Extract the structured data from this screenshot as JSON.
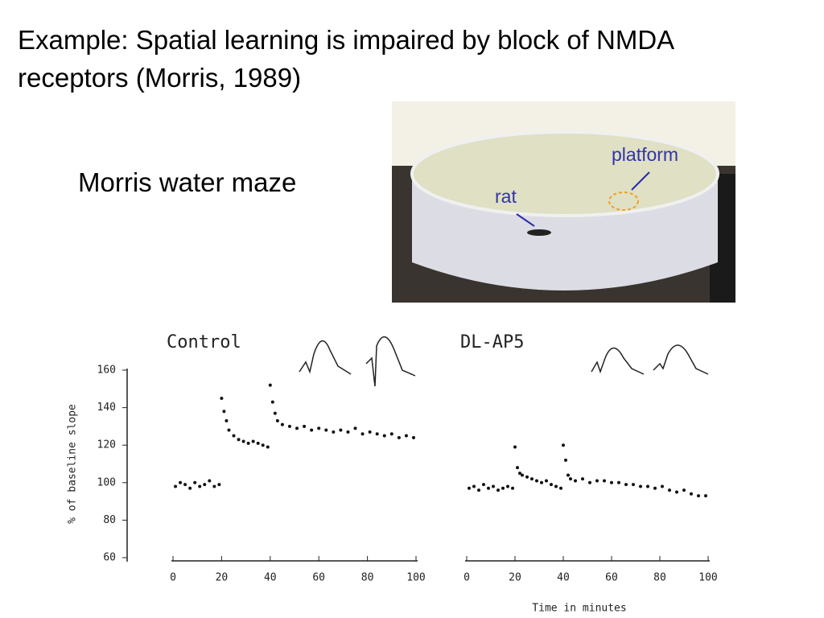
{
  "title": "Example: Spatial learning is impaired by block of NMDA receptors (Morris, 1989)",
  "label": "Morris water maze",
  "photo": {
    "platform": "platform",
    "rat": "rat"
  },
  "chart_data": [
    {
      "type": "scatter",
      "title": "Control",
      "y_label": "% of baseline slope",
      "color": "#111111",
      "x": [
        1,
        3,
        5,
        7,
        9,
        11,
        13,
        15,
        17,
        19,
        20,
        21,
        22,
        23,
        25,
        27,
        29,
        31,
        33,
        35,
        37,
        39,
        40,
        41,
        42,
        43,
        45,
        48,
        51,
        54,
        57,
        60,
        63,
        66,
        69,
        72,
        75,
        78,
        81,
        84,
        87,
        90,
        93,
        96,
        99
      ],
      "values": [
        98,
        100,
        99,
        97,
        100,
        98,
        99,
        101,
        98,
        99,
        145,
        138,
        133,
        128,
        125,
        123,
        122,
        121,
        122,
        121,
        120,
        119,
        152,
        143,
        137,
        133,
        131,
        130,
        129,
        130,
        128,
        129,
        128,
        127,
        128,
        127,
        129,
        126,
        127,
        126,
        125,
        126,
        124,
        125,
        124
      ],
      "xlim": [
        0,
        100
      ],
      "xticks": [
        0,
        20,
        40,
        60,
        80,
        100
      ],
      "ylim": [
        60,
        160
      ],
      "yticks": [
        60,
        80,
        100,
        120,
        140,
        160
      ]
    },
    {
      "type": "scatter",
      "title": "DL-AP5",
      "x_label": "Time in minutes",
      "color": "#111111",
      "x": [
        1,
        3,
        5,
        7,
        9,
        11,
        13,
        15,
        17,
        19,
        20,
        21,
        22,
        23,
        25,
        27,
        29,
        31,
        33,
        35,
        37,
        39,
        40,
        41,
        42,
        43,
        45,
        48,
        51,
        54,
        57,
        60,
        63,
        66,
        69,
        72,
        75,
        78,
        81,
        84,
        87,
        90,
        93,
        96,
        99
      ],
      "values": [
        97,
        98,
        96,
        99,
        97,
        98,
        96,
        97,
        98,
        97,
        119,
        108,
        105,
        104,
        103,
        102,
        101,
        100,
        101,
        99,
        98,
        97,
        120,
        112,
        104,
        102,
        101,
        102,
        100,
        101,
        101,
        100,
        100,
        99,
        99,
        98,
        98,
        97,
        98,
        96,
        95,
        96,
        94,
        93,
        93
      ],
      "xlim": [
        0,
        100
      ],
      "xticks": [
        0,
        20,
        40,
        60,
        80,
        100
      ],
      "ylim": [
        60,
        160
      ]
    }
  ]
}
